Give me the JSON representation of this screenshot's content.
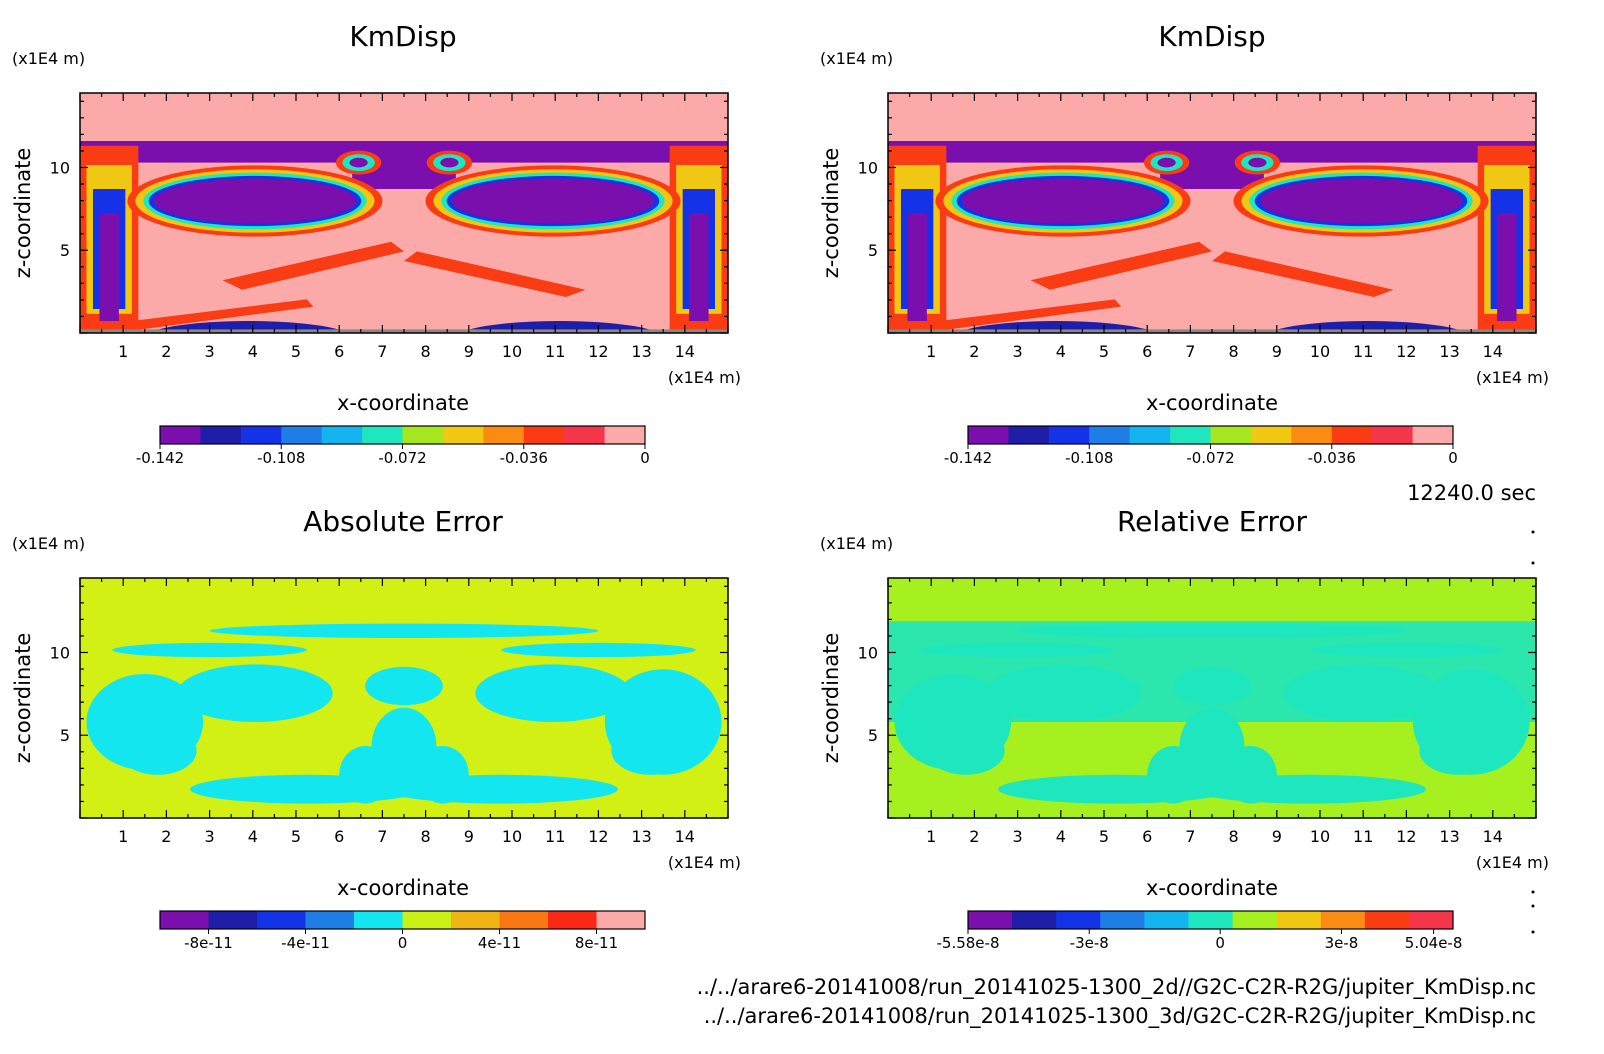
{
  "figure": {
    "time_label": "12240.0 sec",
    "file_line_1": "../../arare6-20141008/run_20141025-1300_2d//G2C-C2R-R2G/jupiter_KmDisp.nc",
    "file_line_2": "../../arare6-20141008/run_20141025-1300_3d/G2C-C2R-R2G/jupiter_KmDisp.nc"
  },
  "chart_data": [
    {
      "type": "heatmap",
      "title": "KmDisp",
      "xlabel": "x-coordinate",
      "ylabel": "z-coordinate",
      "x_unit": "(x1E4 m)",
      "y_unit": "(x1E4 m)",
      "xlim": [
        0,
        15
      ],
      "ylim": [
        0,
        14.5
      ],
      "x_ticks": [
        "1",
        "2",
        "3",
        "4",
        "5",
        "6",
        "7",
        "8",
        "9",
        "10",
        "11",
        "12",
        "13",
        "14"
      ],
      "y_ticks": [
        "5",
        "10"
      ],
      "colorbar": {
        "colors": [
          "#7a0fae",
          "#1e1ea8",
          "#1432e6",
          "#1f7de6",
          "#14b4f0",
          "#1ee6be",
          "#a5e61e",
          "#f0c814",
          "#fa8c14",
          "#fa3c14",
          "#f5354a",
          "#fba9a9"
        ],
        "tick_labels": [
          "-0.142",
          "-0.108",
          "-0.072",
          "-0.036",
          "0"
        ]
      },
      "background_color": "#fba9a9"
    },
    {
      "type": "heatmap",
      "title": "KmDisp",
      "xlabel": "x-coordinate",
      "ylabel": "z-coordinate",
      "x_unit": "(x1E4 m)",
      "y_unit": "(x1E4 m)",
      "xlim": [
        0,
        15
      ],
      "ylim": [
        0,
        14.5
      ],
      "x_ticks": [
        "1",
        "2",
        "3",
        "4",
        "5",
        "6",
        "7",
        "8",
        "9",
        "10",
        "11",
        "12",
        "13",
        "14"
      ],
      "y_ticks": [
        "5",
        "10"
      ],
      "colorbar": {
        "colors": [
          "#7a0fae",
          "#1e1ea8",
          "#1432e6",
          "#1f7de6",
          "#14b4f0",
          "#1ee6be",
          "#a5e61e",
          "#f0c814",
          "#fa8c14",
          "#fa3c14",
          "#f5354a",
          "#fba9a9"
        ],
        "tick_labels": [
          "-0.142",
          "-0.108",
          "-0.072",
          "-0.036",
          "0"
        ]
      },
      "background_color": "#fba9a9"
    },
    {
      "type": "heatmap",
      "title": "Absolute Error",
      "xlabel": "x-coordinate",
      "ylabel": "z-coordinate",
      "x_unit": "(x1E4 m)",
      "y_unit": "(x1E4 m)",
      "xlim": [
        0,
        15
      ],
      "ylim": [
        0,
        14.5
      ],
      "x_ticks": [
        "1",
        "2",
        "3",
        "4",
        "5",
        "6",
        "7",
        "8",
        "9",
        "10",
        "11",
        "12",
        "13",
        "14"
      ],
      "y_ticks": [
        "5",
        "10"
      ],
      "colorbar": {
        "colors": [
          "#7a0fae",
          "#1e1ea8",
          "#1432e6",
          "#1f7de6",
          "#14e6f0",
          "#c8f014",
          "#f0b414",
          "#fa7814",
          "#fa2814",
          "#fba9a9"
        ],
        "tick_labels": [
          "-8e-11",
          "-4e-11",
          "0",
          "4e-11",
          "8e-11"
        ]
      },
      "background_color": "#d2f014"
    },
    {
      "type": "heatmap",
      "title": "Relative Error",
      "xlabel": "x-coordinate",
      "ylabel": "z-coordinate",
      "x_unit": "(x1E4 m)",
      "y_unit": "(x1E4 m)",
      "xlim": [
        0,
        15
      ],
      "ylim": [
        0,
        14.5
      ],
      "x_ticks": [
        "1",
        "2",
        "3",
        "4",
        "5",
        "6",
        "7",
        "8",
        "9",
        "10",
        "11",
        "12",
        "13",
        "14"
      ],
      "y_ticks": [
        "5",
        "10"
      ],
      "colorbar": {
        "colors": [
          "#7a0fae",
          "#1e1ea8",
          "#1432e6",
          "#1f7de6",
          "#14b4f0",
          "#1ee6be",
          "#a5f01e",
          "#f0c814",
          "#fa8c14",
          "#fa3c14",
          "#f5354a"
        ],
        "tick_labels": [
          "-5.58e-8",
          "-3e-8",
          "0",
          "3e-8",
          "5.04e-8"
        ]
      },
      "background_color": "#a5f01e"
    }
  ]
}
